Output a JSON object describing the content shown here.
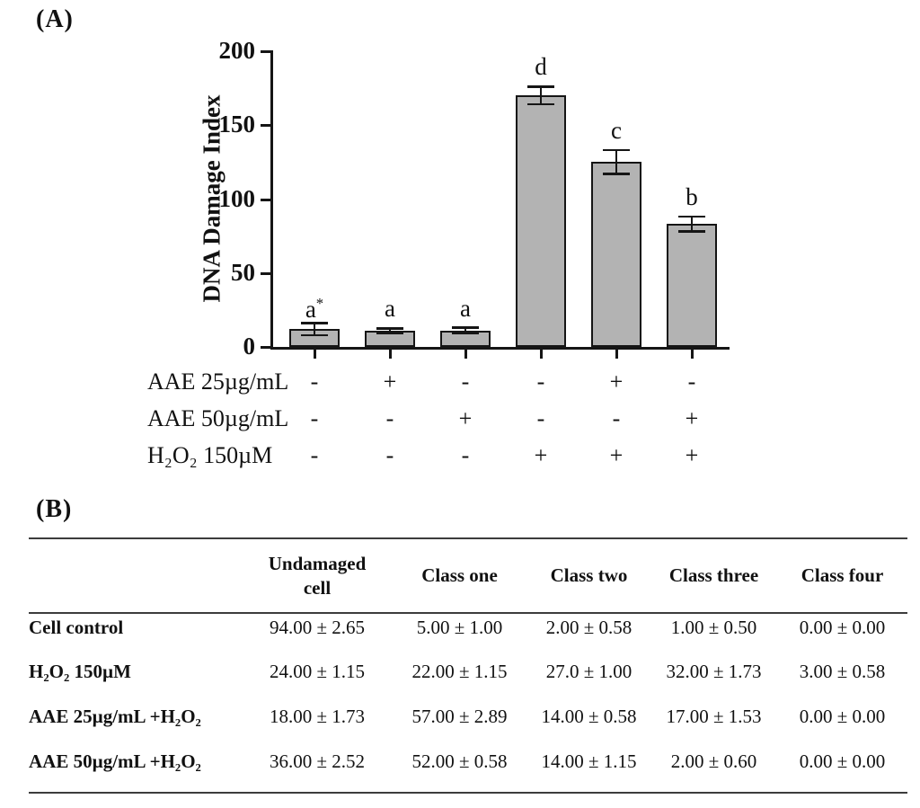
{
  "chart_data": [
    {
      "type": "bar",
      "panel": "(A)",
      "ylabel": "DNA Damage Index",
      "ylim": [
        0,
        200
      ],
      "yticks": [
        0,
        50,
        100,
        150,
        200
      ],
      "grid": false,
      "bar_color": "#b3b3b3",
      "values": [
        12,
        11,
        11,
        170,
        125,
        83
      ],
      "errors": [
        4,
        1.5,
        2,
        6,
        8,
        5
      ],
      "letters": [
        {
          "t": "a",
          "sup": "*"
        },
        {
          "t": "a"
        },
        {
          "t": "a"
        },
        {
          "t": "d"
        },
        {
          "t": "c"
        },
        {
          "t": "b"
        }
      ],
      "treatments": [
        {
          "label": "AAE 25µg/mL",
          "signs": [
            "-",
            "+",
            "-",
            "-",
            "+",
            "-"
          ]
        },
        {
          "label": "AAE 50µg/mL",
          "signs": [
            "-",
            "-",
            "+",
            "-",
            "-",
            "+"
          ]
        },
        {
          "label": "H₂O₂ 150µM",
          "signs": [
            "-",
            "-",
            "-",
            "+",
            "+",
            "+"
          ]
        }
      ]
    },
    {
      "type": "table",
      "panel": "(B)",
      "headers": [
        "",
        "Undamaged\ncell",
        "Class one",
        "Class two",
        "Class three",
        "Class four"
      ],
      "rows": [
        {
          "label": "Cell control",
          "values": [
            "94.00 ± 2.65",
            "5.00 ± 1.00",
            "2.00 ± 0.58",
            "1.00 ± 0.50",
            "0.00 ± 0.00"
          ]
        },
        {
          "label": "H₂O₂ 150µM",
          "values": [
            "24.00 ± 1.15",
            "22.00 ± 1.15",
            "27.0 ± 1.00",
            "32.00 ± 1.73",
            "3.00 ± 0.58"
          ]
        },
        {
          "label": "AAE 25µg/mL +H₂O₂",
          "values": [
            "18.00 ± 1.73",
            "57.00 ± 2.89",
            "14.00 ± 0.58",
            "17.00 ± 1.53",
            "0.00 ± 0.00"
          ]
        },
        {
          "label": "AAE 50µg/mL +H₂O₂",
          "values": [
            "36.00 ± 2.52",
            "52.00 ± 0.58",
            "14.00 ± 1.15",
            "2.00 ± 0.60",
            "0.00 ± 0.00"
          ]
        }
      ]
    }
  ]
}
